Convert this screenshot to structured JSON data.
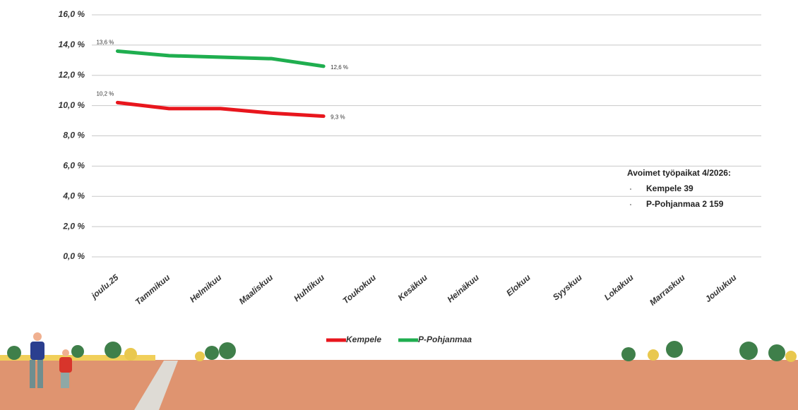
{
  "chart_data": {
    "type": "line",
    "categories": [
      "joulu.25",
      "Tammikuu",
      "Helmikuu",
      "Maaliskuu",
      "Huhtikuu",
      "Toukokuu",
      "Kesäkuu",
      "Heinäkuu",
      "Elokuu",
      "Syyskuu",
      "Lokakuu",
      "Marraskuu",
      "Joulukuu"
    ],
    "series": [
      {
        "name": "Kempele",
        "color": "#e8161d",
        "values": [
          10.2,
          9.8,
          9.8,
          9.5,
          9.3,
          null,
          null,
          null,
          null,
          null,
          null,
          null,
          null
        ],
        "value_labels": [
          "10,2 %",
          null,
          null,
          null,
          "9,3 %",
          null,
          null,
          null,
          null,
          null,
          null,
          null,
          null
        ]
      },
      {
        "name": "P-Pohjanmaa",
        "color": "#1fae4f",
        "values": [
          13.6,
          13.3,
          13.2,
          13.1,
          12.6,
          null,
          null,
          null,
          null,
          null,
          null,
          null,
          null
        ],
        "value_labels": [
          "13,6 %",
          null,
          null,
          null,
          "12,6 %",
          null,
          null,
          null,
          null,
          null,
          null,
          null,
          null
        ]
      }
    ],
    "ylim": [
      0,
      16
    ],
    "yticks": [
      {
        "value": 0,
        "label": "0,0 %"
      },
      {
        "value": 2,
        "label": "2,0 %"
      },
      {
        "value": 4,
        "label": "4,0 %"
      },
      {
        "value": 6,
        "label": "6,0 %"
      },
      {
        "value": 8,
        "label": "8,0 %"
      },
      {
        "value": 10,
        "label": "10,0 %"
      },
      {
        "value": 12,
        "label": "12,0 %"
      },
      {
        "value": 14,
        "label": "14,0 %"
      },
      {
        "value": 16,
        "label": "16,0 %"
      }
    ],
    "grid": true,
    "legend": "bottom",
    "annotations": {
      "title": "Avoimet työpaikat 4/2026:",
      "items": [
        "Kempele 39",
        "P-Pohjanmaa 2 159"
      ]
    }
  }
}
